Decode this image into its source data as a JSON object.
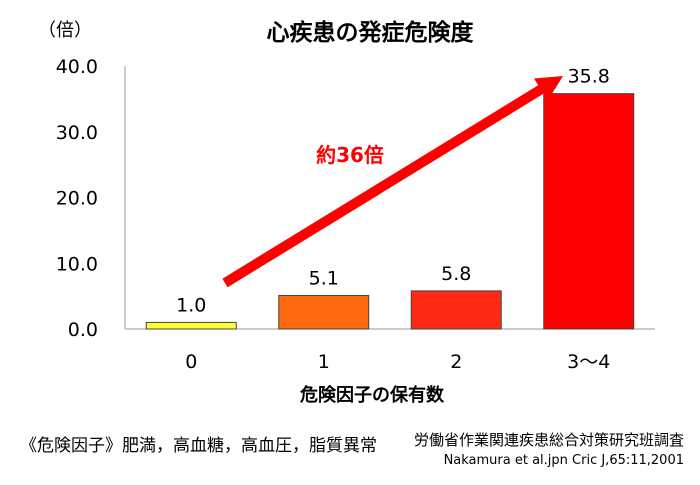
{
  "chart_data": {
    "type": "bar",
    "title": "心疾患の発症危険度",
    "ylabel": "（倍）",
    "xlabel": "危険因子の保有数",
    "categories": [
      "0",
      "1",
      "2",
      "3～4"
    ],
    "values": [
      1.0,
      5.1,
      5.8,
      35.8
    ],
    "value_labels": [
      "1.0",
      "5.1",
      "5.8",
      "35.8"
    ],
    "yticks": [
      "0.0",
      "10.0",
      "20.0",
      "30.0",
      "40.0"
    ],
    "ylim": [
      0,
      40
    ],
    "grid": false,
    "annotation": "約36倍",
    "colors": {
      "bars": [
        "#ffff33",
        "#ff6a10",
        "#ff2a14",
        "#ff0000"
      ],
      "arrow": "#ff0000",
      "annotation": "#ff0000"
    }
  },
  "notes": {
    "risk_factors": "《危険因子》肥満，高血糖，高血圧，脂質異常",
    "source_org": "労働省作業関連疾患総合対策研究班調査",
    "source_ref": "Nakamura et al.jpn Cric J,65:11,2001"
  }
}
